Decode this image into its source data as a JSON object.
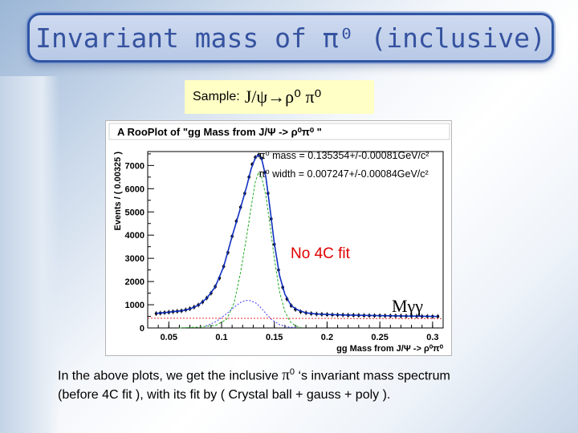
{
  "slide": {
    "title": "Invariant mass of π⁰ (inclusive)",
    "sample_label": "Sample:",
    "sample_decay": "J/ψ→ρ⁰ π⁰",
    "caption_part1": "In the above plots, we get the inclusive",
    "caption_pi": "π",
    "caption_pi_sup": "0",
    "caption_part2": "‘s invariant mass spectrum",
    "caption_line2": "(before 4C fit ), with its fit by ( Crystal ball + gauss + poly )."
  },
  "chart_data": {
    "type": "scatter",
    "title": "A RooPlot of \"gg Mass from J/Ψ -> ρ⁰π⁰ \"",
    "xlabel": "gg Mass from J/Ψ -> ρ⁰π⁰",
    "ylabel": "Events / ( 0.00325 )",
    "xlim": [
      0.03,
      0.31
    ],
    "ylim": [
      0,
      7600
    ],
    "x_ticks": [
      0.05,
      0.1,
      0.15,
      0.2,
      0.25,
      0.3
    ],
    "x_tick_labels": [
      "0.05",
      "0.1",
      "0.15",
      "0.2",
      "0.25",
      "0.3"
    ],
    "y_ticks": [
      0,
      1000,
      2000,
      3000,
      4000,
      5000,
      6000,
      7000
    ],
    "y_tick_labels": [
      "0",
      "1000",
      "2000",
      "3000",
      "4000",
      "5000",
      "6000",
      "7000"
    ],
    "annotations": {
      "pi0_mass": "π⁰ mass = 0.135354+/-0.00081GeV/c²",
      "pi0_width": "π⁰  width = 0.007247+/-0.00084GeV/c²",
      "no_fit": "No 4C fit",
      "mgg": "Mγγ"
    },
    "series": [
      {
        "role": "data",
        "x": [
          0.038,
          0.042,
          0.046,
          0.05,
          0.054,
          0.058,
          0.062,
          0.066,
          0.07,
          0.074,
          0.078,
          0.082,
          0.086,
          0.09,
          0.094,
          0.098,
          0.102,
          0.106,
          0.11,
          0.114,
          0.118,
          0.122,
          0.126,
          0.129,
          0.132,
          0.135,
          0.138,
          0.141,
          0.144,
          0.147,
          0.15,
          0.154,
          0.158,
          0.162,
          0.166,
          0.17,
          0.175,
          0.18,
          0.185,
          0.19,
          0.195,
          0.2,
          0.205,
          0.21,
          0.215,
          0.22,
          0.225,
          0.23,
          0.235,
          0.24,
          0.245,
          0.25,
          0.255,
          0.26,
          0.265,
          0.27,
          0.275,
          0.28,
          0.285,
          0.29,
          0.295,
          0.3,
          0.305
        ],
        "y": [
          620,
          640,
          660,
          680,
          700,
          720,
          740,
          780,
          830,
          900,
          990,
          1120,
          1290,
          1500,
          1780,
          2150,
          2650,
          3250,
          3950,
          4600,
          5200,
          5800,
          6500,
          7050,
          7350,
          7450,
          7300,
          6700,
          5800,
          4700,
          3600,
          2500,
          1750,
          1250,
          960,
          800,
          700,
          650,
          620,
          600,
          590,
          580,
          570,
          560,
          560,
          550,
          550,
          545,
          540,
          535,
          530,
          530,
          525,
          520,
          520,
          515,
          510,
          510,
          505,
          500,
          500,
          495,
          495
        ]
      },
      {
        "role": "total fit",
        "x": [
          0.038,
          0.046,
          0.054,
          0.062,
          0.07,
          0.078,
          0.086,
          0.094,
          0.102,
          0.11,
          0.118,
          0.124,
          0.128,
          0.132,
          0.135,
          0.138,
          0.142,
          0.146,
          0.15,
          0.155,
          0.16,
          0.166,
          0.172,
          0.18,
          0.19,
          0.2,
          0.22,
          0.24,
          0.26,
          0.28,
          0.3,
          0.305
        ],
        "y": [
          630,
          660,
          700,
          740,
          820,
          980,
          1280,
          1770,
          2640,
          3940,
          5180,
          6120,
          6850,
          7330,
          7450,
          7290,
          6500,
          5100,
          3650,
          2250,
          1450,
          960,
          780,
          650,
          600,
          580,
          555,
          540,
          525,
          510,
          497,
          495
        ]
      },
      {
        "role": "crystal ball",
        "x": [
          0.06,
          0.08,
          0.095,
          0.105,
          0.112,
          0.118,
          0.124,
          0.128,
          0.132,
          0.135,
          0.138,
          0.142,
          0.146,
          0.15,
          0.155,
          0.16,
          0.165,
          0.17,
          0.176
        ],
        "y": [
          0,
          40,
          120,
          380,
          1100,
          2400,
          4000,
          5200,
          6300,
          6700,
          6500,
          5700,
          4400,
          3000,
          1550,
          700,
          280,
          90,
          10
        ]
      },
      {
        "role": "gauss",
        "x": [
          0.085,
          0.095,
          0.105,
          0.112,
          0.118,
          0.123,
          0.128,
          0.133,
          0.138,
          0.143,
          0.148,
          0.155,
          0.162,
          0.17
        ],
        "y": [
          80,
          280,
          620,
          900,
          1100,
          1190,
          1170,
          1060,
          840,
          570,
          340,
          140,
          50,
          10
        ]
      },
      {
        "role": "poly",
        "x": [
          0.03,
          0.31
        ],
        "y": [
          420,
          400
        ]
      }
    ]
  }
}
